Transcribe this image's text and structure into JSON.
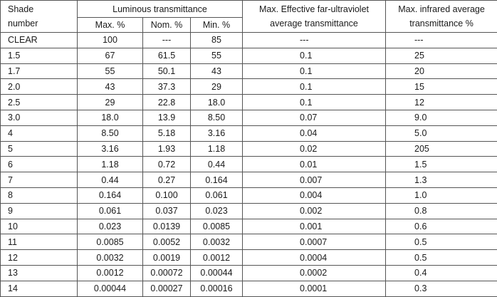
{
  "table": {
    "header": {
      "shade": "Shade number",
      "luminous": "Luminous transmittance",
      "max": "Max. %",
      "nom": "Nom. %",
      "min": "Min. %",
      "far_uv": "Max. Effective far-ultraviolet average transmittance",
      "infrared": "Max. infrared average transmittance %"
    },
    "rows": [
      [
        "CLEAR",
        "100",
        "---",
        "85",
        "---",
        "---"
      ],
      [
        "1.5",
        "67",
        "61.5",
        "55",
        "0.1",
        "25"
      ],
      [
        "1.7",
        "55",
        "50.1",
        "43",
        "0.1",
        "20"
      ],
      [
        "2.0",
        "43",
        "37.3",
        "29",
        "0.1",
        "15"
      ],
      [
        "2.5",
        "29",
        "22.8",
        "18.0",
        "0.1",
        "12"
      ],
      [
        "3.0",
        "18.0",
        "13.9",
        "8.50",
        "0.07",
        "9.0"
      ],
      [
        "4",
        "8.50",
        "5.18",
        "3.16",
        "0.04",
        "5.0"
      ],
      [
        "5",
        "3.16",
        "1.93",
        "1.18",
        "0.02",
        "205"
      ],
      [
        "6",
        "1.18",
        "0.72",
        "0.44",
        "0.01",
        "1.5"
      ],
      [
        "7",
        "0.44",
        "0.27",
        "0.164",
        "0.007",
        "1.3"
      ],
      [
        "8",
        "0.164",
        "0.100",
        "0.061",
        "0.004",
        "1.0"
      ],
      [
        "9",
        "0.061",
        "0.037",
        "0.023",
        "0.002",
        "0.8"
      ],
      [
        "10",
        "0.023",
        "0.0139",
        "0.0085",
        "0.001",
        "0.6"
      ],
      [
        "11",
        "0.0085",
        "0.0052",
        "0.0032",
        "0.0007",
        "0.5"
      ],
      [
        "12",
        "0.0032",
        "0.0019",
        "0.0012",
        "0.0004",
        "0.5"
      ],
      [
        "13",
        "0.0012",
        "0.00072",
        "0.00044",
        "0.0002",
        "0.4"
      ],
      [
        "14",
        "0.00044",
        "0.00027",
        "0.00016",
        "0.0001",
        "0.3"
      ]
    ]
  }
}
